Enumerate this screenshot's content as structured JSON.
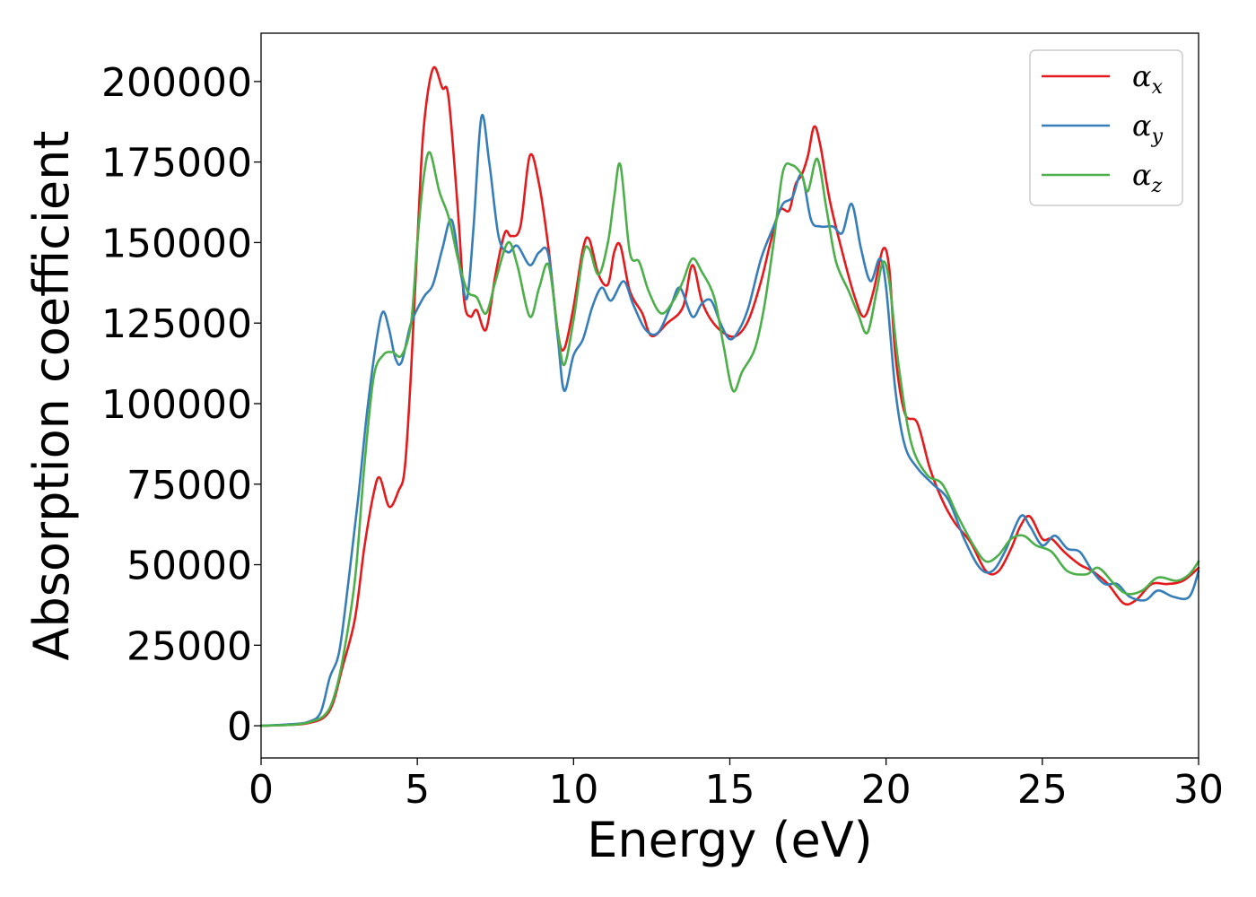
{
  "chart_data": {
    "type": "line",
    "title": "",
    "xlabel": "Energy (eV)",
    "ylabel": "Absorption coefficient",
    "xlim": [
      0,
      30
    ],
    "ylim": [
      -10000,
      215000
    ],
    "xticks": [
      0,
      5,
      10,
      15,
      20,
      25,
      30
    ],
    "xtick_labels": [
      "0",
      "5",
      "10",
      "15",
      "20",
      "25",
      "30"
    ],
    "yticks": [
      0,
      25000,
      50000,
      75000,
      100000,
      125000,
      150000,
      175000,
      200000
    ],
    "ytick_labels": [
      "0",
      "25000",
      "50000",
      "75000",
      "100000",
      "125000",
      "150000",
      "175000",
      "200000"
    ],
    "grid": false,
    "legend_position": "top-right",
    "series": [
      {
        "name": "α",
        "subscript": "x",
        "color": "#e41a1c",
        "points": [
          [
            0,
            0
          ],
          [
            1,
            300
          ],
          [
            1.5,
            800
          ],
          [
            2,
            2500
          ],
          [
            2.3,
            7000
          ],
          [
            2.6,
            18000
          ],
          [
            3,
            33000
          ],
          [
            3.3,
            55000
          ],
          [
            3.6,
            72000
          ],
          [
            3.8,
            77000
          ],
          [
            4.1,
            68000
          ],
          [
            4.4,
            73000
          ],
          [
            4.6,
            80000
          ],
          [
            4.8,
            110000
          ],
          [
            5,
            150000
          ],
          [
            5.2,
            185000
          ],
          [
            5.5,
            204000
          ],
          [
            5.8,
            198000
          ],
          [
            6,
            195000
          ],
          [
            6.3,
            160000
          ],
          [
            6.5,
            132000
          ],
          [
            6.7,
            127000
          ],
          [
            6.9,
            129000
          ],
          [
            7.2,
            123000
          ],
          [
            7.5,
            140000
          ],
          [
            7.8,
            153000
          ],
          [
            8,
            152000
          ],
          [
            8.3,
            155000
          ],
          [
            8.6,
            177000
          ],
          [
            8.9,
            168000
          ],
          [
            9.2,
            148000
          ],
          [
            9.5,
            122000
          ],
          [
            9.7,
            117000
          ],
          [
            10,
            130000
          ],
          [
            10.3,
            148000
          ],
          [
            10.5,
            151000
          ],
          [
            10.8,
            140000
          ],
          [
            11.1,
            137000
          ],
          [
            11.3,
            147000
          ],
          [
            11.5,
            149000
          ],
          [
            11.8,
            135000
          ],
          [
            12.2,
            128000
          ],
          [
            12.5,
            121000
          ],
          [
            13,
            125000
          ],
          [
            13.5,
            130000
          ],
          [
            13.8,
            143000
          ],
          [
            14.1,
            132000
          ],
          [
            14.4,
            126000
          ],
          [
            14.8,
            122000
          ],
          [
            15.2,
            121000
          ],
          [
            15.6,
            126000
          ],
          [
            16,
            138000
          ],
          [
            16.3,
            150000
          ],
          [
            16.6,
            160000
          ],
          [
            16.9,
            160000
          ],
          [
            17.1,
            168000
          ],
          [
            17.3,
            171000
          ],
          [
            17.5,
            177000
          ],
          [
            17.7,
            186000
          ],
          [
            17.9,
            180000
          ],
          [
            18.2,
            163000
          ],
          [
            18.6,
            147000
          ],
          [
            19,
            133000
          ],
          [
            19.3,
            127000
          ],
          [
            19.6,
            135000
          ],
          [
            19.9,
            148000
          ],
          [
            20.1,
            142000
          ],
          [
            20.3,
            115000
          ],
          [
            20.6,
            97000
          ],
          [
            21,
            94000
          ],
          [
            21.4,
            80000
          ],
          [
            21.8,
            70000
          ],
          [
            22.2,
            63000
          ],
          [
            22.7,
            57000
          ],
          [
            23.2,
            48000
          ],
          [
            23.6,
            48000
          ],
          [
            24,
            55000
          ],
          [
            24.3,
            62000
          ],
          [
            24.6,
            65000
          ],
          [
            25,
            58000
          ],
          [
            25.3,
            58000
          ],
          [
            25.7,
            54000
          ],
          [
            26.2,
            50000
          ],
          [
            26.6,
            48000
          ],
          [
            27.1,
            44000
          ],
          [
            27.6,
            38000
          ],
          [
            28,
            39000
          ],
          [
            28.5,
            44000
          ],
          [
            29,
            44000
          ],
          [
            29.5,
            45000
          ],
          [
            30,
            49000
          ]
        ]
      },
      {
        "name": "α",
        "subscript": "y",
        "color": "#377eb8",
        "points": [
          [
            0,
            0
          ],
          [
            1,
            500
          ],
          [
            1.5,
            1200
          ],
          [
            1.9,
            4000
          ],
          [
            2.2,
            15000
          ],
          [
            2.5,
            23000
          ],
          [
            2.8,
            45000
          ],
          [
            3.1,
            70000
          ],
          [
            3.4,
            98000
          ],
          [
            3.7,
            120000
          ],
          [
            3.9,
            128500
          ],
          [
            4.1,
            123000
          ],
          [
            4.3,
            114000
          ],
          [
            4.5,
            113000
          ],
          [
            4.8,
            125000
          ],
          [
            5.2,
            133000
          ],
          [
            5.5,
            137000
          ],
          [
            5.8,
            148000
          ],
          [
            6.1,
            157000
          ],
          [
            6.4,
            140000
          ],
          [
            6.6,
            133000
          ],
          [
            6.8,
            155000
          ],
          [
            7.05,
            189000
          ],
          [
            7.3,
            175000
          ],
          [
            7.6,
            152000
          ],
          [
            7.9,
            147000
          ],
          [
            8.2,
            149000
          ],
          [
            8.6,
            143000
          ],
          [
            8.9,
            147000
          ],
          [
            9.2,
            146000
          ],
          [
            9.5,
            120000
          ],
          [
            9.7,
            104000
          ],
          [
            10,
            115000
          ],
          [
            10.3,
            120000
          ],
          [
            10.6,
            130000
          ],
          [
            10.9,
            136000
          ],
          [
            11.2,
            132000
          ],
          [
            11.6,
            138000
          ],
          [
            11.9,
            131000
          ],
          [
            12.3,
            123000
          ],
          [
            12.7,
            122000
          ],
          [
            13.1,
            130000
          ],
          [
            13.4,
            136000
          ],
          [
            13.8,
            127000
          ],
          [
            14.1,
            131000
          ],
          [
            14.4,
            132000
          ],
          [
            14.7,
            125000
          ],
          [
            15,
            120000
          ],
          [
            15.3,
            123000
          ],
          [
            15.6,
            130000
          ],
          [
            16,
            145000
          ],
          [
            16.4,
            155000
          ],
          [
            16.7,
            162000
          ],
          [
            17,
            164000
          ],
          [
            17.3,
            171000
          ],
          [
            17.6,
            157000
          ],
          [
            17.9,
            155000
          ],
          [
            18.3,
            155000
          ],
          [
            18.6,
            153000
          ],
          [
            18.9,
            162000
          ],
          [
            19.2,
            148000
          ],
          [
            19.5,
            138000
          ],
          [
            19.8,
            145000
          ],
          [
            20,
            136000
          ],
          [
            20.3,
            104000
          ],
          [
            20.6,
            87000
          ],
          [
            21,
            80000
          ],
          [
            21.5,
            75000
          ],
          [
            22,
            70000
          ],
          [
            22.5,
            58000
          ],
          [
            23,
            49000
          ],
          [
            23.4,
            48000
          ],
          [
            23.8,
            54000
          ],
          [
            24.3,
            65000
          ],
          [
            24.6,
            62000
          ],
          [
            25,
            56000
          ],
          [
            25.4,
            59000
          ],
          [
            25.8,
            55000
          ],
          [
            26.2,
            54000
          ],
          [
            26.6,
            48000
          ],
          [
            27,
            44000
          ],
          [
            27.4,
            44000
          ],
          [
            27.8,
            40000
          ],
          [
            28.3,
            39000
          ],
          [
            28.7,
            42000
          ],
          [
            29.2,
            40000
          ],
          [
            29.7,
            40000
          ],
          [
            30,
            48000
          ]
        ]
      },
      {
        "name": "α",
        "subscript": "z",
        "color": "#4daf4a",
        "points": [
          [
            0,
            0
          ],
          [
            1,
            300
          ],
          [
            1.5,
            1000
          ],
          [
            2,
            3000
          ],
          [
            2.3,
            8000
          ],
          [
            2.6,
            20000
          ],
          [
            3,
            45000
          ],
          [
            3.3,
            80000
          ],
          [
            3.6,
            108000
          ],
          [
            3.9,
            115000
          ],
          [
            4.2,
            116000
          ],
          [
            4.5,
            115000
          ],
          [
            4.8,
            125000
          ],
          [
            5,
            150000
          ],
          [
            5.2,
            170000
          ],
          [
            5.4,
            178000
          ],
          [
            5.7,
            166000
          ],
          [
            6,
            158000
          ],
          [
            6.3,
            145000
          ],
          [
            6.6,
            135000
          ],
          [
            6.9,
            133000
          ],
          [
            7.2,
            128000
          ],
          [
            7.5,
            138000
          ],
          [
            7.9,
            150000
          ],
          [
            8.2,
            143000
          ],
          [
            8.6,
            127000
          ],
          [
            8.9,
            136000
          ],
          [
            9.2,
            143000
          ],
          [
            9.5,
            122000
          ],
          [
            9.7,
            112000
          ],
          [
            10,
            126000
          ],
          [
            10.3,
            146000
          ],
          [
            10.5,
            148000
          ],
          [
            10.8,
            140000
          ],
          [
            11.1,
            150000
          ],
          [
            11.3,
            164000
          ],
          [
            11.5,
            174000
          ],
          [
            11.8,
            147000
          ],
          [
            12.1,
            144000
          ],
          [
            12.4,
            135000
          ],
          [
            12.8,
            128000
          ],
          [
            13.2,
            132000
          ],
          [
            13.5,
            138000
          ],
          [
            13.8,
            145000
          ],
          [
            14.1,
            141000
          ],
          [
            14.5,
            133000
          ],
          [
            14.8,
            118000
          ],
          [
            15.1,
            104000
          ],
          [
            15.4,
            110000
          ],
          [
            15.8,
            117000
          ],
          [
            16.1,
            130000
          ],
          [
            16.4,
            150000
          ],
          [
            16.7,
            172000
          ],
          [
            17,
            174000
          ],
          [
            17.3,
            171000
          ],
          [
            17.5,
            166000
          ],
          [
            17.8,
            176000
          ],
          [
            18.1,
            160000
          ],
          [
            18.4,
            144000
          ],
          [
            18.8,
            135000
          ],
          [
            19.1,
            128000
          ],
          [
            19.4,
            122000
          ],
          [
            19.7,
            135000
          ],
          [
            19.9,
            144000
          ],
          [
            20.1,
            138000
          ],
          [
            20.4,
            112000
          ],
          [
            20.8,
            88000
          ],
          [
            21.3,
            78000
          ],
          [
            21.8,
            75000
          ],
          [
            22.3,
            65000
          ],
          [
            22.8,
            56000
          ],
          [
            23.2,
            51000
          ],
          [
            23.6,
            53000
          ],
          [
            24,
            58000
          ],
          [
            24.4,
            59000
          ],
          [
            24.8,
            56000
          ],
          [
            25.3,
            54000
          ],
          [
            25.8,
            48000
          ],
          [
            26.4,
            47000
          ],
          [
            26.8,
            49000
          ],
          [
            27.3,
            44000
          ],
          [
            27.7,
            41000
          ],
          [
            28.2,
            42000
          ],
          [
            28.7,
            46000
          ],
          [
            29.3,
            45000
          ],
          [
            29.7,
            47000
          ],
          [
            30,
            51000
          ]
        ]
      }
    ]
  }
}
